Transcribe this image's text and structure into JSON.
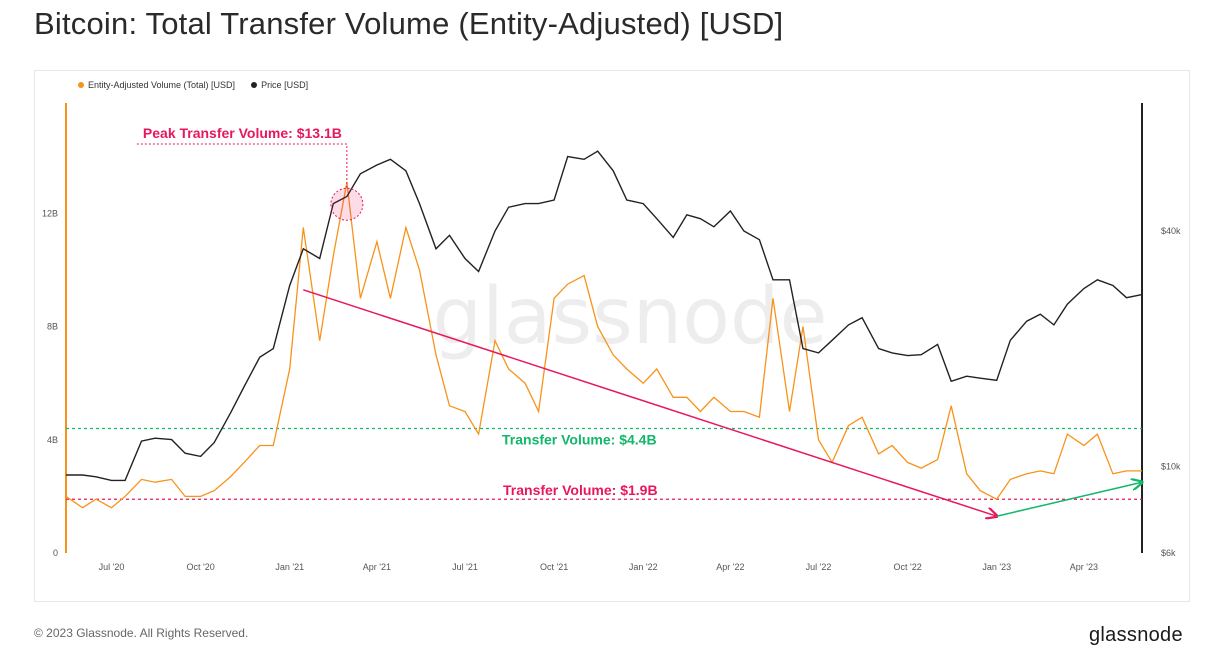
{
  "title": "Bitcoin: Total Transfer Volume (Entity-Adjusted) [USD]",
  "footer": {
    "copyright": "© 2023 Glassnode. All Rights Reserved.",
    "brand": "glassnode"
  },
  "watermark": "glassnode",
  "colors": {
    "volume": "#f7931a",
    "price": "#222222",
    "peak": "#e8175d",
    "green": "#12b76a",
    "axis_left": "#f7931a"
  },
  "chart_data": {
    "type": "line",
    "legend": [
      "Entity-Adjusted Volume (Total) [USD]",
      "Price [USD]"
    ],
    "x_ticks": [
      "Jul '20",
      "Oct '20",
      "Jan '21",
      "Apr '21",
      "Jul '21",
      "Oct '21",
      "Jan '22",
      "Apr '22",
      "Jul '22",
      "Oct '22",
      "Jan '23",
      "Apr '23"
    ],
    "x_range": [
      "2020-05-15",
      "2023-05-31"
    ],
    "y_left": {
      "ticks": [
        "0",
        "4B",
        "8B",
        "12B"
      ],
      "tick_values": [
        0,
        4,
        8,
        12
      ],
      "range": [
        0,
        15.9
      ]
    },
    "y_right": {
      "scale": "log",
      "ticks": [
        "$6k",
        "$10k",
        "$40k"
      ],
      "tick_values": [
        6000,
        10000,
        40000
      ],
      "range": [
        6000,
        85000
      ]
    },
    "series": [
      {
        "name": "Entity-Adjusted Volume (Total) [USD]",
        "axis": "left",
        "unit": "B USD",
        "points": [
          [
            "2020-05-15",
            2.0
          ],
          [
            "2020-06-01",
            1.6
          ],
          [
            "2020-06-15",
            1.9
          ],
          [
            "2020-07-01",
            1.6
          ],
          [
            "2020-07-15",
            2.0
          ],
          [
            "2020-08-01",
            2.6
          ],
          [
            "2020-08-15",
            2.5
          ],
          [
            "2020-09-01",
            2.6
          ],
          [
            "2020-09-15",
            2.0
          ],
          [
            "2020-10-01",
            2.0
          ],
          [
            "2020-10-15",
            2.2
          ],
          [
            "2020-11-01",
            2.7
          ],
          [
            "2020-11-15",
            3.2
          ],
          [
            "2020-12-01",
            3.8
          ],
          [
            "2020-12-15",
            3.8
          ],
          [
            "2021-01-01",
            6.5
          ],
          [
            "2021-01-15",
            11.5
          ],
          [
            "2021-02-01",
            7.5
          ],
          [
            "2021-02-15",
            10.5
          ],
          [
            "2021-03-01",
            13.1
          ],
          [
            "2021-03-15",
            9.0
          ],
          [
            "2021-04-01",
            11.0
          ],
          [
            "2021-04-15",
            9.0
          ],
          [
            "2021-05-01",
            11.5
          ],
          [
            "2021-05-15",
            10.0
          ],
          [
            "2021-06-01",
            7.0
          ],
          [
            "2021-06-15",
            5.2
          ],
          [
            "2021-07-01",
            5.0
          ],
          [
            "2021-07-15",
            4.2
          ],
          [
            "2021-08-01",
            7.5
          ],
          [
            "2021-08-15",
            6.5
          ],
          [
            "2021-09-01",
            6.0
          ],
          [
            "2021-09-15",
            5.0
          ],
          [
            "2021-10-01",
            9.0
          ],
          [
            "2021-10-15",
            9.5
          ],
          [
            "2021-11-01",
            9.8
          ],
          [
            "2021-11-15",
            8.0
          ],
          [
            "2021-12-01",
            7.0
          ],
          [
            "2021-12-15",
            6.5
          ],
          [
            "2022-01-01",
            6.0
          ],
          [
            "2022-01-15",
            6.5
          ],
          [
            "2022-02-01",
            5.5
          ],
          [
            "2022-02-15",
            5.5
          ],
          [
            "2022-03-01",
            5.0
          ],
          [
            "2022-03-15",
            5.5
          ],
          [
            "2022-04-01",
            5.0
          ],
          [
            "2022-04-15",
            5.0
          ],
          [
            "2022-05-01",
            4.8
          ],
          [
            "2022-05-15",
            9.0
          ],
          [
            "2022-06-01",
            5.0
          ],
          [
            "2022-06-15",
            8.0
          ],
          [
            "2022-07-01",
            4.0
          ],
          [
            "2022-07-15",
            3.2
          ],
          [
            "2022-08-01",
            4.5
          ],
          [
            "2022-08-15",
            4.8
          ],
          [
            "2022-09-01",
            3.5
          ],
          [
            "2022-09-15",
            3.8
          ],
          [
            "2022-10-01",
            3.2
          ],
          [
            "2022-10-15",
            3.0
          ],
          [
            "2022-11-01",
            3.3
          ],
          [
            "2022-11-15",
            5.2
          ],
          [
            "2022-12-01",
            2.8
          ],
          [
            "2022-12-15",
            2.2
          ],
          [
            "2023-01-01",
            1.9
          ],
          [
            "2023-01-15",
            2.6
          ],
          [
            "2023-02-01",
            2.8
          ],
          [
            "2023-02-15",
            2.9
          ],
          [
            "2023-03-01",
            2.8
          ],
          [
            "2023-03-15",
            4.2
          ],
          [
            "2023-04-01",
            3.8
          ],
          [
            "2023-04-15",
            4.2
          ],
          [
            "2023-05-01",
            2.8
          ],
          [
            "2023-05-15",
            2.9
          ],
          [
            "2023-05-31",
            2.9
          ]
        ]
      },
      {
        "name": "Price [USD]",
        "axis": "right",
        "unit": "USD",
        "points": [
          [
            "2020-05-15",
            9500
          ],
          [
            "2020-06-01",
            9500
          ],
          [
            "2020-06-15",
            9400
          ],
          [
            "2020-07-01",
            9200
          ],
          [
            "2020-07-15",
            9200
          ],
          [
            "2020-08-01",
            11600
          ],
          [
            "2020-08-15",
            11800
          ],
          [
            "2020-09-01",
            11700
          ],
          [
            "2020-09-15",
            10800
          ],
          [
            "2020-10-01",
            10600
          ],
          [
            "2020-10-15",
            11500
          ],
          [
            "2020-11-01",
            13700
          ],
          [
            "2020-11-15",
            16000
          ],
          [
            "2020-12-01",
            19000
          ],
          [
            "2020-12-15",
            20000
          ],
          [
            "2021-01-01",
            29000
          ],
          [
            "2021-01-15",
            36000
          ],
          [
            "2021-02-01",
            34000
          ],
          [
            "2021-02-15",
            47000
          ],
          [
            "2021-03-01",
            49000
          ],
          [
            "2021-03-15",
            56000
          ],
          [
            "2021-04-01",
            59000
          ],
          [
            "2021-04-15",
            61000
          ],
          [
            "2021-05-01",
            57000
          ],
          [
            "2021-05-15",
            47000
          ],
          [
            "2021-06-01",
            36000
          ],
          [
            "2021-06-15",
            39000
          ],
          [
            "2021-07-01",
            34000
          ],
          [
            "2021-07-15",
            31500
          ],
          [
            "2021-08-01",
            40000
          ],
          [
            "2021-08-15",
            46000
          ],
          [
            "2021-09-01",
            47000
          ],
          [
            "2021-09-15",
            47000
          ],
          [
            "2021-10-01",
            48000
          ],
          [
            "2021-10-15",
            62000
          ],
          [
            "2021-11-01",
            61000
          ],
          [
            "2021-11-15",
            64000
          ],
          [
            "2021-12-01",
            57000
          ],
          [
            "2021-12-15",
            48000
          ],
          [
            "2022-01-01",
            47000
          ],
          [
            "2022-01-15",
            43000
          ],
          [
            "2022-02-01",
            38500
          ],
          [
            "2022-02-15",
            44000
          ],
          [
            "2022-03-01",
            43000
          ],
          [
            "2022-03-15",
            41000
          ],
          [
            "2022-04-01",
            45000
          ],
          [
            "2022-04-15",
            40000
          ],
          [
            "2022-05-01",
            38000
          ],
          [
            "2022-05-15",
            30000
          ],
          [
            "2022-06-01",
            30000
          ],
          [
            "2022-06-15",
            20000
          ],
          [
            "2022-07-01",
            19500
          ],
          [
            "2022-07-15",
            21000
          ],
          [
            "2022-08-01",
            23000
          ],
          [
            "2022-08-15",
            24000
          ],
          [
            "2022-09-01",
            20000
          ],
          [
            "2022-09-15",
            19500
          ],
          [
            "2022-10-01",
            19200
          ],
          [
            "2022-10-15",
            19300
          ],
          [
            "2022-11-01",
            20500
          ],
          [
            "2022-11-15",
            16500
          ],
          [
            "2022-12-01",
            17000
          ],
          [
            "2022-12-15",
            16800
          ],
          [
            "2023-01-01",
            16600
          ],
          [
            "2023-01-15",
            21000
          ],
          [
            "2023-02-01",
            23500
          ],
          [
            "2023-02-15",
            24500
          ],
          [
            "2023-03-01",
            23000
          ],
          [
            "2023-03-15",
            26000
          ],
          [
            "2023-04-01",
            28500
          ],
          [
            "2023-04-15",
            30000
          ],
          [
            "2023-05-01",
            29000
          ],
          [
            "2023-05-15",
            27000
          ],
          [
            "2023-05-31",
            27500
          ]
        ]
      }
    ],
    "annotations": [
      {
        "text": "Peak Transfer Volume: $13.1B",
        "color": "#e8175d",
        "at": [
          "2021-03-01",
          13.1
        ]
      },
      {
        "text": "Transfer Volume: $4.4B",
        "color": "#12b76a",
        "hline": 4.4
      },
      {
        "text": "Transfer Volume: $1.9B",
        "color": "#e8175d",
        "hline": 1.9
      }
    ],
    "trend_lines": [
      {
        "color": "#e8175d",
        "from": [
          "2021-01-15",
          9.3
        ],
        "to": [
          "2023-01-01",
          1.3
        ]
      },
      {
        "color": "#12b76a",
        "from": [
          "2023-01-01",
          1.3
        ],
        "to": [
          "2023-05-31",
          2.5
        ]
      }
    ],
    "grid": false
  }
}
